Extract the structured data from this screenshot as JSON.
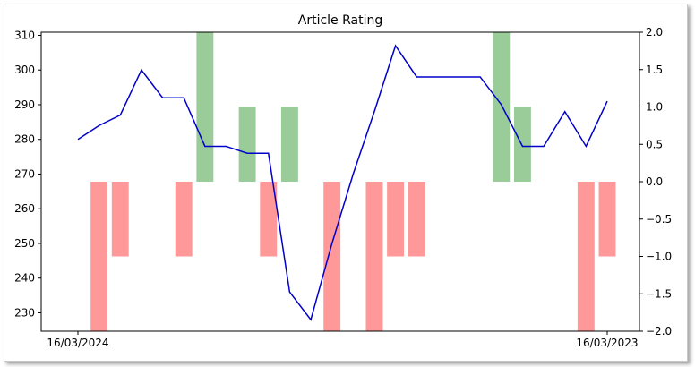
{
  "chart_data": {
    "type": "bar+line",
    "title": "Article Rating",
    "xlabel": "",
    "ylabel_left": "",
    "ylabel_right": "",
    "x_tick_labels": [
      "16/03/2024",
      "16/03/2023"
    ],
    "left_axis": {
      "ylim": [
        224.7,
        310.9
      ],
      "ticks": [
        230,
        240,
        250,
        260,
        270,
        280,
        290,
        300,
        310
      ]
    },
    "right_axis": {
      "ylim": [
        -2.0,
        2.0
      ],
      "ticks": [
        "−2.0",
        "−1.5",
        "−1.0",
        "−0.5",
        "0.0",
        "0.5",
        "1.0",
        "1.5",
        "2.0"
      ],
      "tick_values": [
        -2.0,
        -1.5,
        -1.0,
        -0.5,
        0.0,
        0.5,
        1.0,
        1.5,
        2.0
      ]
    },
    "line_series": {
      "color": "#0000cc",
      "axis": "left",
      "values": [
        280,
        284,
        287,
        300,
        292,
        292,
        278,
        278,
        276,
        276,
        236,
        228,
        250,
        270,
        288,
        307,
        298,
        298,
        298,
        298,
        290,
        278,
        278,
        288,
        278,
        291
      ]
    },
    "bar_series": {
      "axis": "right",
      "positive_color": "#99cc99",
      "negative_color": "#ff9999",
      "values": [
        0,
        -2,
        -1,
        0,
        0,
        -1,
        2,
        0,
        1,
        -1,
        1,
        0,
        -2,
        0,
        -2,
        -1,
        -1,
        0,
        0,
        0,
        2,
        1,
        0,
        0,
        -2,
        -1
      ]
    },
    "grid": false,
    "legend": "none"
  }
}
